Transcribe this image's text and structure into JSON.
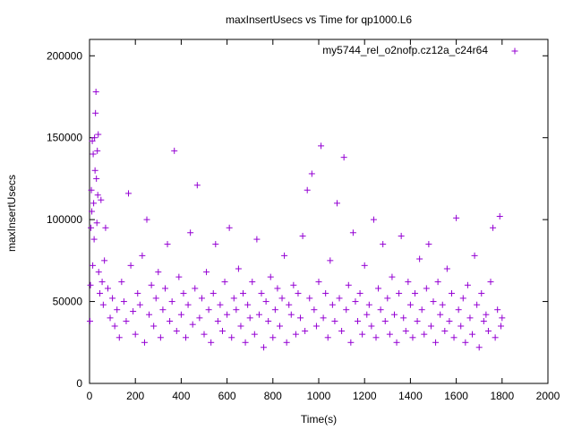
{
  "chart_data": {
    "type": "scatter",
    "title": "maxInsertUsecs vs Time for qp1000.L6",
    "xlabel": "Time(s)",
    "ylabel": "maxInsertUsecs",
    "xlim": [
      0,
      2000
    ],
    "ylim": [
      0,
      210000
    ],
    "x_ticks": [
      "0",
      "200",
      "400",
      "600",
      "800",
      "1000",
      "1200",
      "1400",
      "1600",
      "1800",
      "2000"
    ],
    "y_ticks": [
      "0",
      "50000",
      "100000",
      "150000",
      "200000"
    ],
    "grid": false,
    "legend_position": "top-right",
    "colors": {
      "series": "#9400d3",
      "axis": "#000000"
    },
    "series": [
      {
        "name": "my5744_rel_o2nofp.cz12a_c24r64",
        "points": [
          [
            2,
            38000
          ],
          [
            4,
            60000
          ],
          [
            6,
            95000
          ],
          [
            8,
            118000
          ],
          [
            10,
            105000
          ],
          [
            12,
            148000
          ],
          [
            14,
            72000
          ],
          [
            16,
            140000
          ],
          [
            18,
            110000
          ],
          [
            20,
            88000
          ],
          [
            22,
            150000
          ],
          [
            24,
            130000
          ],
          [
            26,
            165000
          ],
          [
            28,
            178000
          ],
          [
            30,
            125000
          ],
          [
            32,
            98000
          ],
          [
            34,
            142000
          ],
          [
            36,
            115000
          ],
          [
            38,
            152000
          ],
          [
            40,
            68000
          ],
          [
            45,
            55000
          ],
          [
            50,
            112000
          ],
          [
            55,
            62000
          ],
          [
            60,
            48000
          ],
          [
            65,
            75000
          ],
          [
            70,
            95000
          ],
          [
            80,
            58000
          ],
          [
            90,
            40000
          ],
          [
            100,
            52000
          ],
          [
            110,
            35000
          ],
          [
            120,
            45000
          ],
          [
            130,
            28000
          ],
          [
            140,
            62000
          ],
          [
            150,
            50000
          ],
          [
            160,
            38000
          ],
          [
            170,
            116000
          ],
          [
            180,
            72000
          ],
          [
            190,
            44000
          ],
          [
            200,
            30000
          ],
          [
            210,
            55000
          ],
          [
            220,
            48000
          ],
          [
            230,
            78000
          ],
          [
            240,
            25000
          ],
          [
            250,
            100000
          ],
          [
            260,
            42000
          ],
          [
            270,
            60000
          ],
          [
            280,
            35000
          ],
          [
            290,
            52000
          ],
          [
            300,
            68000
          ],
          [
            310,
            28000
          ],
          [
            320,
            45000
          ],
          [
            330,
            58000
          ],
          [
            340,
            85000
          ],
          [
            350,
            38000
          ],
          [
            360,
            50000
          ],
          [
            370,
            142000
          ],
          [
            380,
            32000
          ],
          [
            390,
            65000
          ],
          [
            400,
            42000
          ],
          [
            410,
            55000
          ],
          [
            420,
            28000
          ],
          [
            430,
            48000
          ],
          [
            440,
            92000
          ],
          [
            450,
            36000
          ],
          [
            460,
            58000
          ],
          [
            470,
            121000
          ],
          [
            480,
            40000
          ],
          [
            490,
            52000
          ],
          [
            500,
            30000
          ],
          [
            510,
            68000
          ],
          [
            520,
            45000
          ],
          [
            530,
            25000
          ],
          [
            540,
            55000
          ],
          [
            550,
            85000
          ],
          [
            560,
            38000
          ],
          [
            570,
            48000
          ],
          [
            580,
            32000
          ],
          [
            590,
            62000
          ],
          [
            600,
            42000
          ],
          [
            610,
            95000
          ],
          [
            620,
            28000
          ],
          [
            630,
            52000
          ],
          [
            640,
            45000
          ],
          [
            650,
            70000
          ],
          [
            660,
            35000
          ],
          [
            670,
            55000
          ],
          [
            680,
            25000
          ],
          [
            690,
            48000
          ],
          [
            700,
            40000
          ],
          [
            710,
            62000
          ],
          [
            720,
            30000
          ],
          [
            730,
            88000
          ],
          [
            740,
            42000
          ],
          [
            750,
            55000
          ],
          [
            760,
            22000
          ],
          [
            770,
            50000
          ],
          [
            780,
            38000
          ],
          [
            790,
            65000
          ],
          [
            800,
            28000
          ],
          [
            810,
            45000
          ],
          [
            820,
            58000
          ],
          [
            830,
            35000
          ],
          [
            840,
            52000
          ],
          [
            850,
            78000
          ],
          [
            860,
            25000
          ],
          [
            870,
            48000
          ],
          [
            880,
            42000
          ],
          [
            890,
            60000
          ],
          [
            900,
            30000
          ],
          [
            910,
            55000
          ],
          [
            920,
            40000
          ],
          [
            930,
            90000
          ],
          [
            940,
            32000
          ],
          [
            950,
            118000
          ],
          [
            960,
            52000
          ],
          [
            970,
            128000
          ],
          [
            980,
            45000
          ],
          [
            990,
            35000
          ],
          [
            1000,
            62000
          ],
          [
            1010,
            145000
          ],
          [
            1020,
            40000
          ],
          [
            1030,
            55000
          ],
          [
            1040,
            28000
          ],
          [
            1050,
            75000
          ],
          [
            1060,
            48000
          ],
          [
            1070,
            38000
          ],
          [
            1080,
            110000
          ],
          [
            1090,
            52000
          ],
          [
            1100,
            32000
          ],
          [
            1110,
            138000
          ],
          [
            1120,
            45000
          ],
          [
            1130,
            60000
          ],
          [
            1140,
            25000
          ],
          [
            1150,
            92000
          ],
          [
            1160,
            50000
          ],
          [
            1170,
            38000
          ],
          [
            1180,
            55000
          ],
          [
            1190,
            30000
          ],
          [
            1200,
            72000
          ],
          [
            1210,
            42000
          ],
          [
            1220,
            48000
          ],
          [
            1230,
            35000
          ],
          [
            1240,
            100000
          ],
          [
            1250,
            28000
          ],
          [
            1260,
            58000
          ],
          [
            1270,
            45000
          ],
          [
            1280,
            85000
          ],
          [
            1290,
            38000
          ],
          [
            1300,
            52000
          ],
          [
            1310,
            30000
          ],
          [
            1320,
            65000
          ],
          [
            1330,
            42000
          ],
          [
            1340,
            25000
          ],
          [
            1350,
            55000
          ],
          [
            1360,
            90000
          ],
          [
            1370,
            40000
          ],
          [
            1380,
            32000
          ],
          [
            1390,
            62000
          ],
          [
            1400,
            48000
          ],
          [
            1410,
            28000
          ],
          [
            1420,
            55000
          ],
          [
            1430,
            38000
          ],
          [
            1440,
            76000
          ],
          [
            1450,
            45000
          ],
          [
            1460,
            30000
          ],
          [
            1470,
            58000
          ],
          [
            1480,
            85000
          ],
          [
            1490,
            35000
          ],
          [
            1500,
            50000
          ],
          [
            1510,
            25000
          ],
          [
            1520,
            62000
          ],
          [
            1530,
            42000
          ],
          [
            1540,
            48000
          ],
          [
            1550,
            32000
          ],
          [
            1560,
            70000
          ],
          [
            1570,
            38000
          ],
          [
            1580,
            55000
          ],
          [
            1590,
            28000
          ],
          [
            1600,
            101000
          ],
          [
            1610,
            45000
          ],
          [
            1620,
            35000
          ],
          [
            1630,
            52000
          ],
          [
            1640,
            25000
          ],
          [
            1650,
            60000
          ],
          [
            1660,
            40000
          ],
          [
            1670,
            30000
          ],
          [
            1680,
            78000
          ],
          [
            1690,
            48000
          ],
          [
            1700,
            22000
          ],
          [
            1710,
            55000
          ],
          [
            1720,
            38000
          ],
          [
            1730,
            42000
          ],
          [
            1740,
            32000
          ],
          [
            1750,
            62000
          ],
          [
            1760,
            95000
          ],
          [
            1770,
            28000
          ],
          [
            1780,
            45000
          ],
          [
            1790,
            102000
          ],
          [
            1795,
            35000
          ],
          [
            1800,
            40000
          ]
        ]
      }
    ]
  }
}
